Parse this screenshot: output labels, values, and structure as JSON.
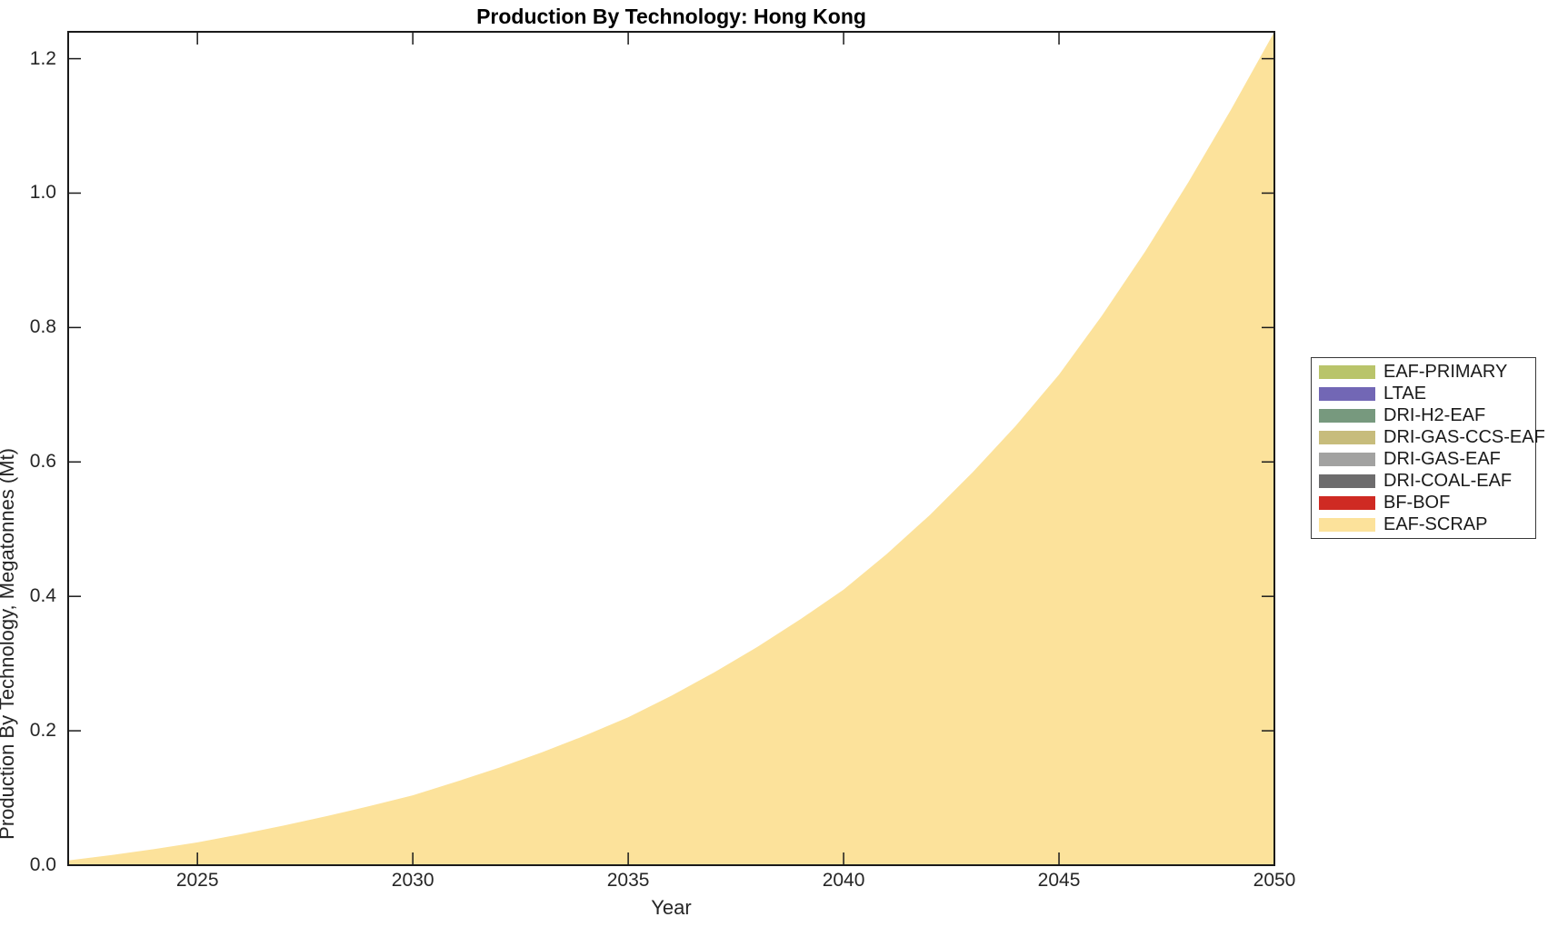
{
  "title": "Production By Technology: Hong Kong",
  "axes": {
    "x_label": "Year",
    "y_label": "Production By Technology, Megatonnes (Mt)"
  },
  "legend": {
    "items": [
      {
        "label": "EAF-PRIMARY",
        "color": "#b9c46a"
      },
      {
        "label": "LTAE",
        "color": "#7267b5"
      },
      {
        "label": "DRI-H2-EAF",
        "color": "#77997e"
      },
      {
        "label": "DRI-GAS-CCS-EAF",
        "color": "#c7bc7c"
      },
      {
        "label": "DRI-GAS-EAF",
        "color": "#a2a2a1"
      },
      {
        "label": "DRI-COAL-EAF",
        "color": "#6d6c6d"
      },
      {
        "label": "BF-BOF",
        "color": "#cf2a23"
      },
      {
        "label": "EAF-SCRAP",
        "color": "#fce29b"
      }
    ]
  },
  "chart_data": {
    "type": "area",
    "title": "Production By Technology: Hong Kong",
    "xlabel": "Year",
    "ylabel": "Production By Technology, Megatonnes (Mt)",
    "xlim": [
      2022,
      2050
    ],
    "ylim": [
      0,
      1.24
    ],
    "x_ticks": [
      2025,
      2030,
      2035,
      2040,
      2045,
      2050
    ],
    "y_ticks": [
      0.0,
      0.2,
      0.4,
      0.6,
      0.8,
      1.0,
      1.2
    ],
    "y_tick_labels": [
      "0.0",
      "0.2",
      "0.4",
      "0.6",
      "0.8",
      "1.0",
      "1.2"
    ],
    "grid": false,
    "legend_position": "outside-right",
    "stacked": true,
    "x": [
      2022,
      2023,
      2024,
      2025,
      2026,
      2027,
      2028,
      2029,
      2030,
      2031,
      2032,
      2033,
      2034,
      2035,
      2036,
      2037,
      2038,
      2039,
      2040,
      2041,
      2042,
      2043,
      2044,
      2045,
      2046,
      2047,
      2048,
      2049,
      2050
    ],
    "series": [
      {
        "name": "EAF-PRIMARY",
        "color": "#b9c46a",
        "values": [
          0,
          0,
          0,
          0,
          0,
          0,
          0,
          0,
          0,
          0,
          0,
          0,
          0,
          0,
          0,
          0,
          0,
          0,
          0,
          0,
          0,
          0,
          0,
          0,
          0,
          0,
          0,
          0,
          0
        ]
      },
      {
        "name": "LTAE",
        "color": "#7267b5",
        "values": [
          0,
          0,
          0,
          0,
          0,
          0,
          0,
          0,
          0,
          0,
          0,
          0,
          0,
          0,
          0,
          0,
          0,
          0,
          0,
          0,
          0,
          0,
          0,
          0,
          0,
          0,
          0,
          0,
          0
        ]
      },
      {
        "name": "DRI-H2-EAF",
        "color": "#77997e",
        "values": [
          0,
          0,
          0,
          0,
          0,
          0,
          0,
          0,
          0,
          0,
          0,
          0,
          0,
          0,
          0,
          0,
          0,
          0,
          0,
          0,
          0,
          0,
          0,
          0,
          0,
          0,
          0,
          0,
          0
        ]
      },
      {
        "name": "DRI-GAS-CCS-EAF",
        "color": "#c7bc7c",
        "values": [
          0,
          0,
          0,
          0,
          0,
          0,
          0,
          0,
          0,
          0,
          0,
          0,
          0,
          0,
          0,
          0,
          0,
          0,
          0,
          0,
          0,
          0,
          0,
          0,
          0,
          0,
          0,
          0,
          0
        ]
      },
      {
        "name": "DRI-GAS-EAF",
        "color": "#a2a2a1",
        "values": [
          0,
          0,
          0,
          0,
          0,
          0,
          0,
          0,
          0,
          0,
          0,
          0,
          0,
          0,
          0,
          0,
          0,
          0,
          0,
          0,
          0,
          0,
          0,
          0,
          0,
          0,
          0,
          0,
          0
        ]
      },
      {
        "name": "DRI-COAL-EAF",
        "color": "#6d6c6d",
        "values": [
          0,
          0,
          0,
          0,
          0,
          0,
          0,
          0,
          0,
          0,
          0,
          0,
          0,
          0,
          0,
          0,
          0,
          0,
          0,
          0,
          0,
          0,
          0,
          0,
          0,
          0,
          0,
          0,
          0
        ]
      },
      {
        "name": "BF-BOF",
        "color": "#cf2a23",
        "values": [
          0,
          0,
          0,
          0,
          0,
          0,
          0,
          0,
          0,
          0,
          0,
          0,
          0,
          0,
          0,
          0,
          0,
          0,
          0,
          0,
          0,
          0,
          0,
          0,
          0,
          0,
          0,
          0,
          0
        ]
      },
      {
        "name": "EAF-SCRAP",
        "color": "#fce29b",
        "values": [
          0.007,
          0.015,
          0.024,
          0.034,
          0.046,
          0.059,
          0.073,
          0.088,
          0.104,
          0.124,
          0.145,
          0.168,
          0.193,
          0.22,
          0.252,
          0.287,
          0.325,
          0.366,
          0.41,
          0.463,
          0.521,
          0.585,
          0.654,
          0.73,
          0.818,
          0.913,
          1.016,
          1.125,
          1.24
        ]
      }
    ]
  }
}
